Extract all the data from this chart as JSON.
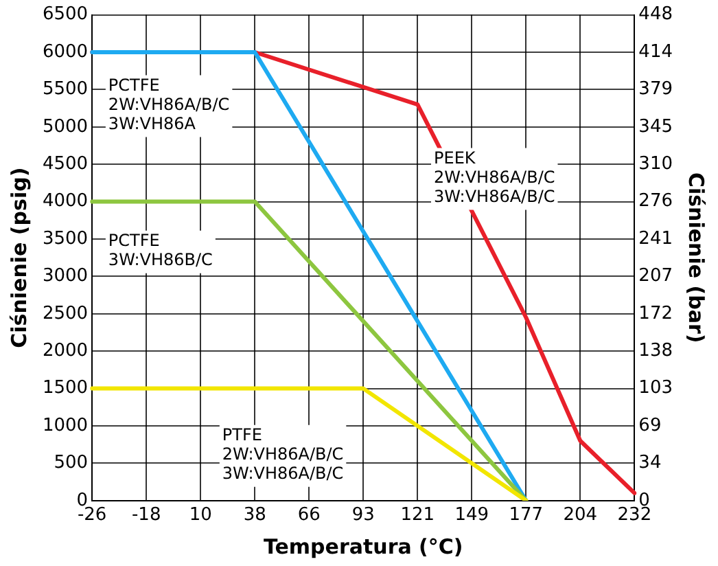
{
  "chart_data": {
    "type": "line",
    "xlabel": "Temperatura (°C)",
    "ylabel": "Ciśnienie (psig)",
    "y2label": "Ciśnienie (bar)",
    "categories": [
      "-26",
      "-18",
      "10",
      "38",
      "66",
      "93",
      "121",
      "149",
      "177",
      "204",
      "232"
    ],
    "series": [
      {
        "name": "PTFE\n2W:VH86A/B/C\n3W:VH86A/B/C",
        "color": "#f2e600",
        "values": [
          1500,
          null,
          null,
          null,
          null,
          1500,
          null,
          null,
          0,
          null,
          null
        ]
      },
      {
        "name": "PCTFE\n3W:VH86B/C",
        "color": "#8dc63f",
        "values": [
          4000,
          null,
          null,
          4000,
          null,
          null,
          null,
          null,
          0,
          null,
          null
        ]
      },
      {
        "name": "PCTFE\n2W:VH86A/B/C\n3W:VH86A",
        "color": "#1eaaf1",
        "values": [
          6000,
          null,
          null,
          6000,
          null,
          null,
          null,
          null,
          0,
          null,
          null
        ]
      },
      {
        "name": "PEEK\n2W:VH86A/B/C\n3W:VH86A/B/C",
        "color": "#e8202a",
        "values": [
          6000,
          null,
          null,
          6000,
          null,
          null,
          5300,
          null,
          2450,
          800,
          100
        ]
      }
    ],
    "ylim": [
      0,
      6500
    ],
    "yticks": [
      0,
      500,
      1000,
      1500,
      2000,
      2500,
      3000,
      3500,
      4000,
      4500,
      5000,
      5500,
      6000,
      6500
    ],
    "y2lim": [
      0,
      448.16
    ],
    "y2ticks": [
      0,
      {
        "value": 34.47,
        "label": "34"
      },
      {
        "value": 68.95,
        "label": "69"
      },
      {
        "value": 103.42,
        "label": "103"
      },
      {
        "value": 137.9,
        "label": "138"
      },
      {
        "value": 172.37,
        "label": "172"
      },
      {
        "value": 206.84,
        "label": "207"
      },
      {
        "value": 241.32,
        "label": "241"
      },
      {
        "value": 275.79,
        "label": "276"
      },
      {
        "value": 310.26,
        "label": "310"
      },
      {
        "value": 344.74,
        "label": "345"
      },
      {
        "value": 379.21,
        "label": "379"
      },
      {
        "value": 413.69,
        "label": "414"
      },
      {
        "value": 448.16,
        "label": "448"
      }
    ],
    "grid": true,
    "legend": false,
    "marker": "none",
    "line_style": "solid"
  }
}
